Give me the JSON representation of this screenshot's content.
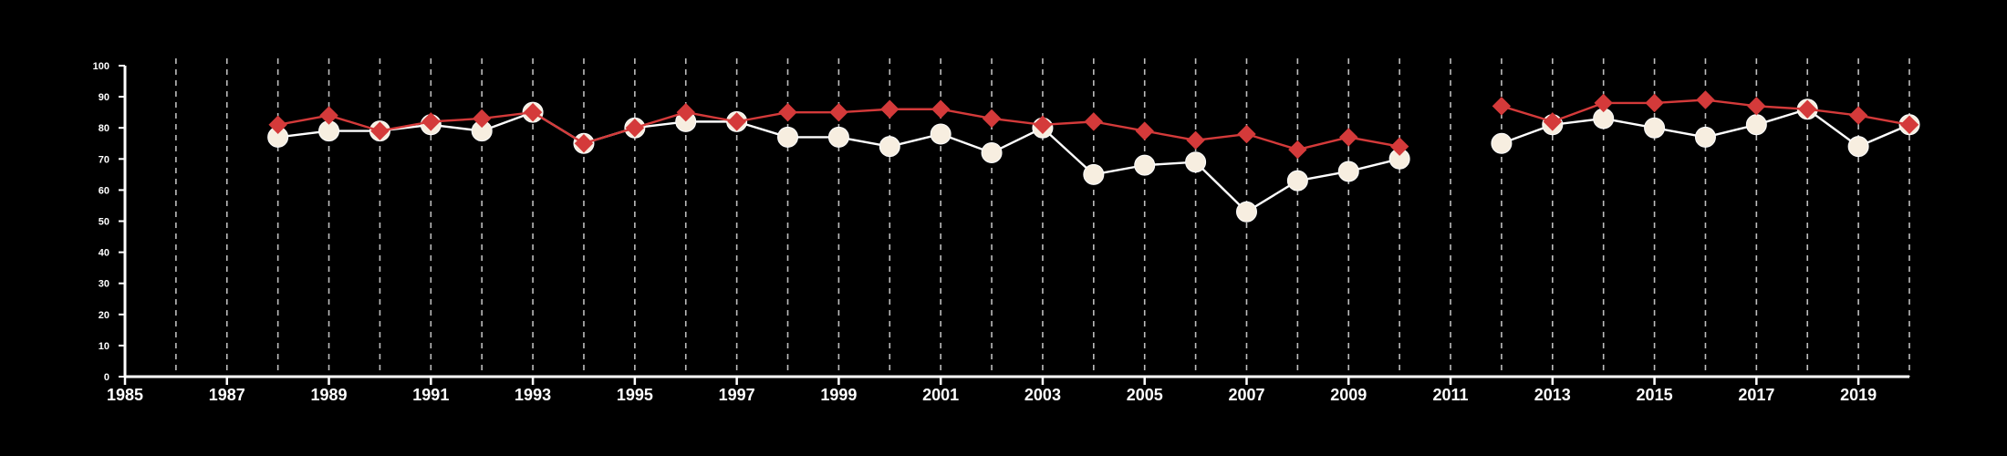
{
  "chart_data": {
    "type": "line",
    "title": "",
    "xlabel": "",
    "ylabel": "",
    "x_ticks": [
      1985,
      1987,
      1989,
      1991,
      1993,
      1995,
      1997,
      1999,
      2001,
      2003,
      2005,
      2007,
      2009,
      2011,
      2013,
      2015,
      2017,
      2019
    ],
    "y_ticks": [
      0,
      10,
      20,
      30,
      40,
      50,
      60,
      70,
      80,
      90,
      100
    ],
    "xlim": [
      1985,
      2020
    ],
    "ylim": [
      0,
      100
    ],
    "vertical_gridlines": "dashed, one per year",
    "colors": {
      "background": "#000000",
      "axis": "#ffffff",
      "grid": "#bdbdbd",
      "series_red": "#d43a3a",
      "series_white_fill": "#f7eee0",
      "series_white_line": "#ffffff"
    },
    "series": [
      {
        "marker": "circle",
        "color": "#f7eee0",
        "points": [
          [
            1988,
            77
          ],
          [
            1989,
            79
          ],
          [
            1990,
            79
          ],
          [
            1991,
            81
          ],
          [
            1992,
            79
          ],
          [
            1993,
            85
          ],
          [
            1994,
            75
          ],
          [
            1995,
            80
          ],
          [
            1996,
            82
          ],
          [
            1997,
            82
          ],
          [
            1998,
            77
          ],
          [
            1999,
            77
          ],
          [
            2000,
            74
          ],
          [
            2001,
            78
          ],
          [
            2002,
            72
          ],
          [
            2003,
            80
          ],
          [
            2004,
            65
          ],
          [
            2005,
            68
          ],
          [
            2006,
            69
          ],
          [
            2007,
            53
          ],
          [
            2008,
            63
          ],
          [
            2009,
            66
          ],
          [
            2010,
            70
          ],
          [
            2012,
            75
          ],
          [
            2013,
            81
          ],
          [
            2014,
            83
          ],
          [
            2015,
            80
          ],
          [
            2016,
            77
          ],
          [
            2017,
            81
          ],
          [
            2018,
            86
          ],
          [
            2019,
            74
          ],
          [
            2020,
            81
          ]
        ]
      },
      {
        "marker": "diamond",
        "color": "#d43a3a",
        "points": [
          [
            1988,
            81
          ],
          [
            1989,
            84
          ],
          [
            1990,
            79
          ],
          [
            1991,
            82
          ],
          [
            1992,
            83
          ],
          [
            1993,
            85
          ],
          [
            1994,
            75
          ],
          [
            1995,
            80
          ],
          [
            1996,
            85
          ],
          [
            1997,
            82
          ],
          [
            1998,
            85
          ],
          [
            1999,
            85
          ],
          [
            2000,
            86
          ],
          [
            2001,
            86
          ],
          [
            2002,
            83
          ],
          [
            2003,
            81
          ],
          [
            2004,
            82
          ],
          [
            2005,
            79
          ],
          [
            2006,
            76
          ],
          [
            2007,
            78
          ],
          [
            2008,
            73
          ],
          [
            2009,
            77
          ],
          [
            2010,
            74
          ],
          [
            2012,
            87
          ],
          [
            2013,
            82
          ],
          [
            2014,
            88
          ],
          [
            2015,
            88
          ],
          [
            2016,
            89
          ],
          [
            2017,
            87
          ],
          [
            2018,
            86
          ],
          [
            2019,
            84
          ],
          [
            2020,
            81
          ]
        ]
      }
    ]
  }
}
